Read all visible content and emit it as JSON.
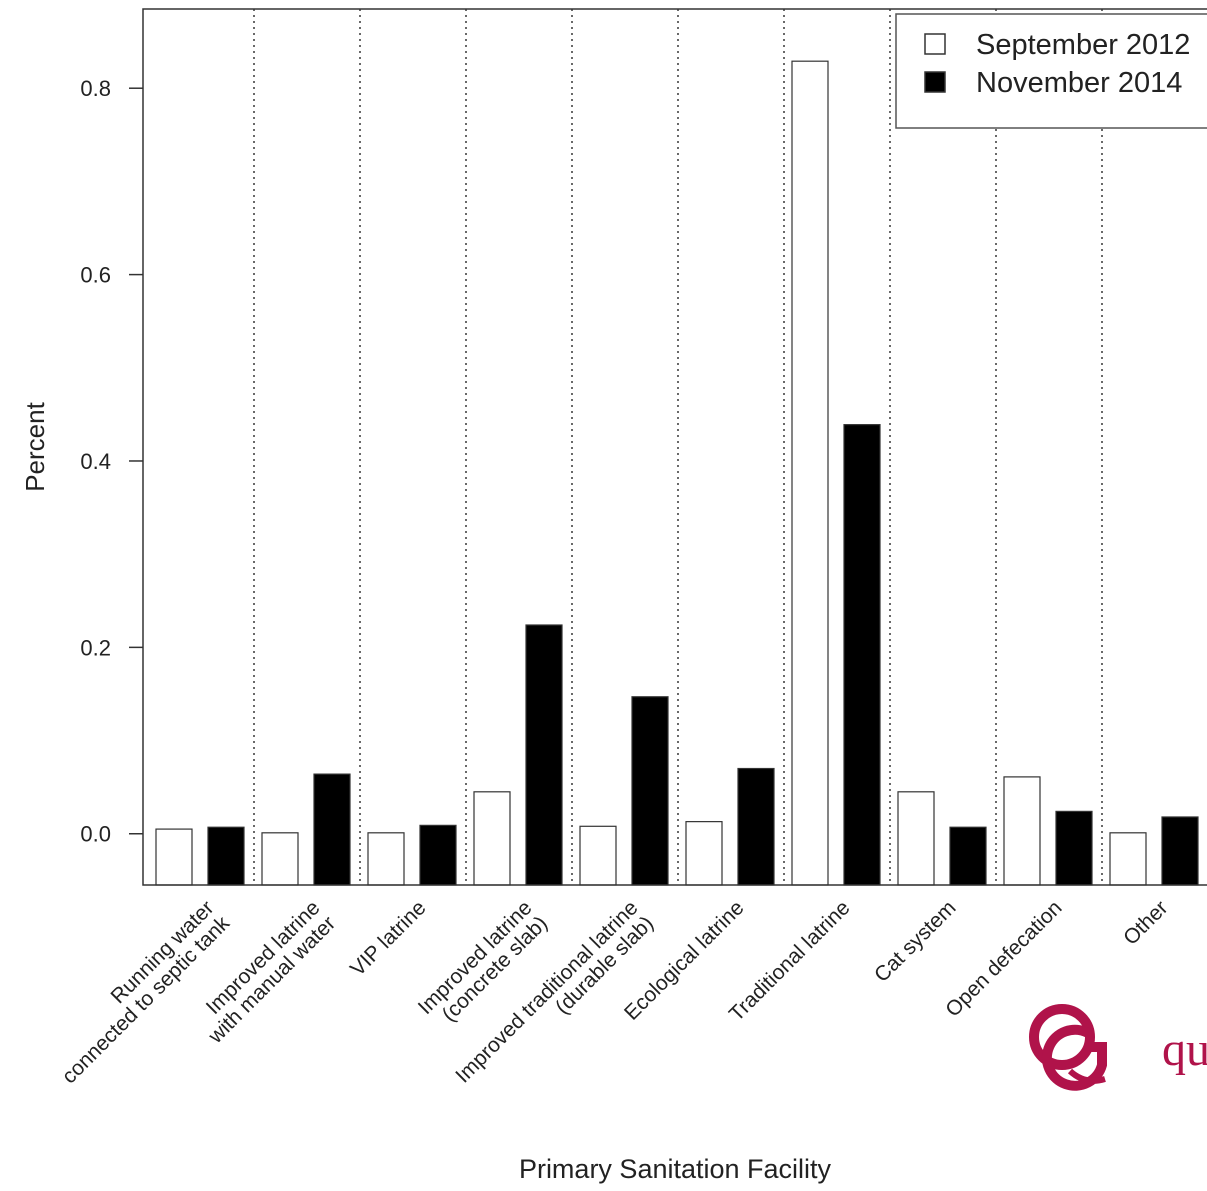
{
  "chart_data": {
    "type": "bar",
    "title": "",
    "xlabel": "Primary Sanitation Facility",
    "ylabel": "Percent",
    "ylim": [
      -0.055,
      0.885
    ],
    "yticks": [
      0.0,
      0.2,
      0.4,
      0.6,
      0.8
    ],
    "ytick_labels": [
      "0.0",
      "0.2",
      "0.4",
      "0.6",
      "0.8"
    ],
    "grid": "vertical dotted separators between categories",
    "legend": "top-right",
    "categories": [
      "Running water\nconnected to septic tank",
      "Improved latrine\nwith manual water",
      "VIP latrine",
      "Improved latrine\n(concrete slab)",
      "Improved traditional latrine\n(durable slab)",
      "Ecological latrine",
      "Traditional latrine",
      "Cat system",
      "Open defecation",
      "Other"
    ],
    "series": [
      {
        "name": "September 2012",
        "fill": "#ffffff",
        "values": [
          0.005,
          0.001,
          0.001,
          0.045,
          0.008,
          0.013,
          0.829,
          0.045,
          0.061,
          0.001
        ]
      },
      {
        "name": "November 2014",
        "fill": "#000000",
        "values": [
          0.007,
          0.064,
          0.009,
          0.224,
          0.147,
          0.07,
          0.439,
          0.007,
          0.024,
          0.018
        ]
      }
    ]
  },
  "watermark": {
    "mark": "QG",
    "text": "qu",
    "color": "#b0134a"
  }
}
